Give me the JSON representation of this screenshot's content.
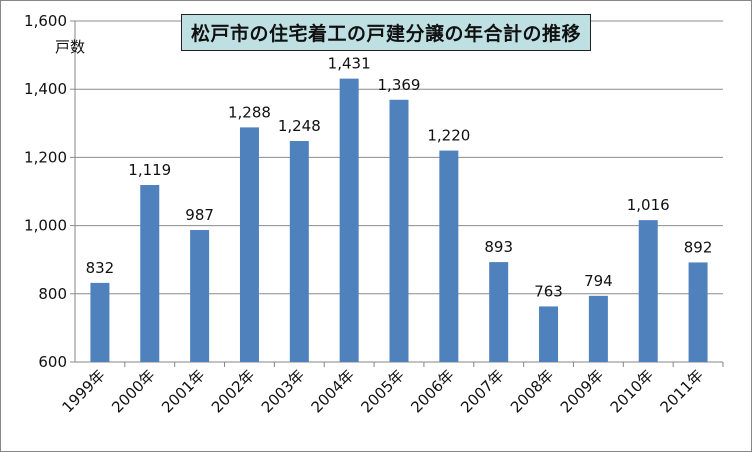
{
  "chart_data": {
    "type": "bar",
    "title": "松戸市の住宅着工の戸建分譲の年合計の推移",
    "ylabel": "戸数",
    "xlabel": "",
    "ylim": [
      600,
      1600
    ],
    "ytick_step": 200,
    "ytick_labels": [
      "600",
      "800",
      "1,000",
      "1,200",
      "1,400",
      "1,600"
    ],
    "grid": true,
    "legend": "none",
    "bar_color": "#4f81bd",
    "grid_color": "#8c8c8c",
    "categories": [
      "1999年",
      "2000年",
      "2001年",
      "2002年",
      "2003年",
      "2004年",
      "2005年",
      "2006年",
      "2007年",
      "2008年",
      "2009年",
      "2010年",
      "2011年"
    ],
    "values": [
      832,
      1119,
      987,
      1288,
      1248,
      1431,
      1369,
      1220,
      893,
      763,
      794,
      1016,
      892
    ],
    "value_labels": [
      "832",
      "1,119",
      "987",
      "1,288",
      "1,248",
      "1,431",
      "1,369",
      "1,220",
      "893",
      "763",
      "794",
      "1,016",
      "892"
    ]
  }
}
